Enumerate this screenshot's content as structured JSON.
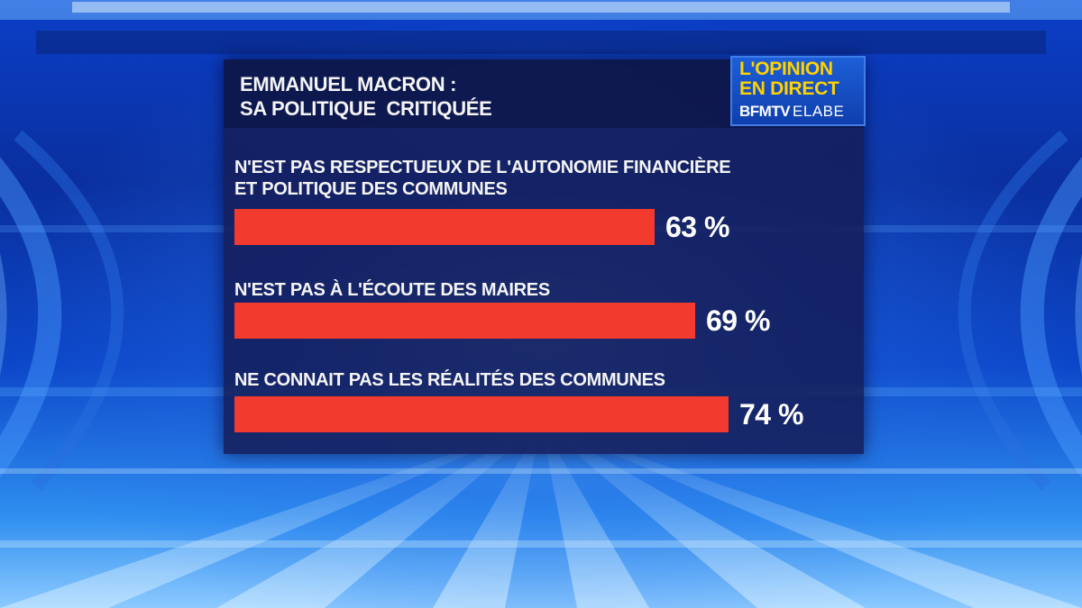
{
  "header": {
    "title_line1": "EMMANUEL MACRON :",
    "title_line2": "SA POLITIQUE  CRITIQUÉE"
  },
  "logo": {
    "line1": "L'OPINION",
    "line2": "EN DIRECT",
    "brand1": "BFMTV",
    "brand2": "ELABE"
  },
  "colors": {
    "bar": "#f23a2e",
    "panel": "#141e5a",
    "logo_accent": "#ffd200"
  },
  "chart_data": {
    "type": "bar",
    "orientation": "horizontal",
    "title": "EMMANUEL MACRON : SA POLITIQUE  CRITIQUÉE",
    "categories": [
      [
        "N'EST PAS RESPECTUEUX DE L'AUTONOMIE FINANCIÈRE",
        "ET POLITIQUE DES COMMUNES"
      ],
      [
        "N'EST PAS À L'ÉCOUTE DES MAIRES"
      ],
      [
        "NE CONNAIT PAS LES RÉALITÉS DES COMMUNES"
      ]
    ],
    "values": [
      63,
      69,
      74
    ],
    "value_labels": [
      "63 %",
      "69 %",
      "74 %"
    ],
    "unit": "%",
    "xlim": [
      0,
      100
    ]
  }
}
